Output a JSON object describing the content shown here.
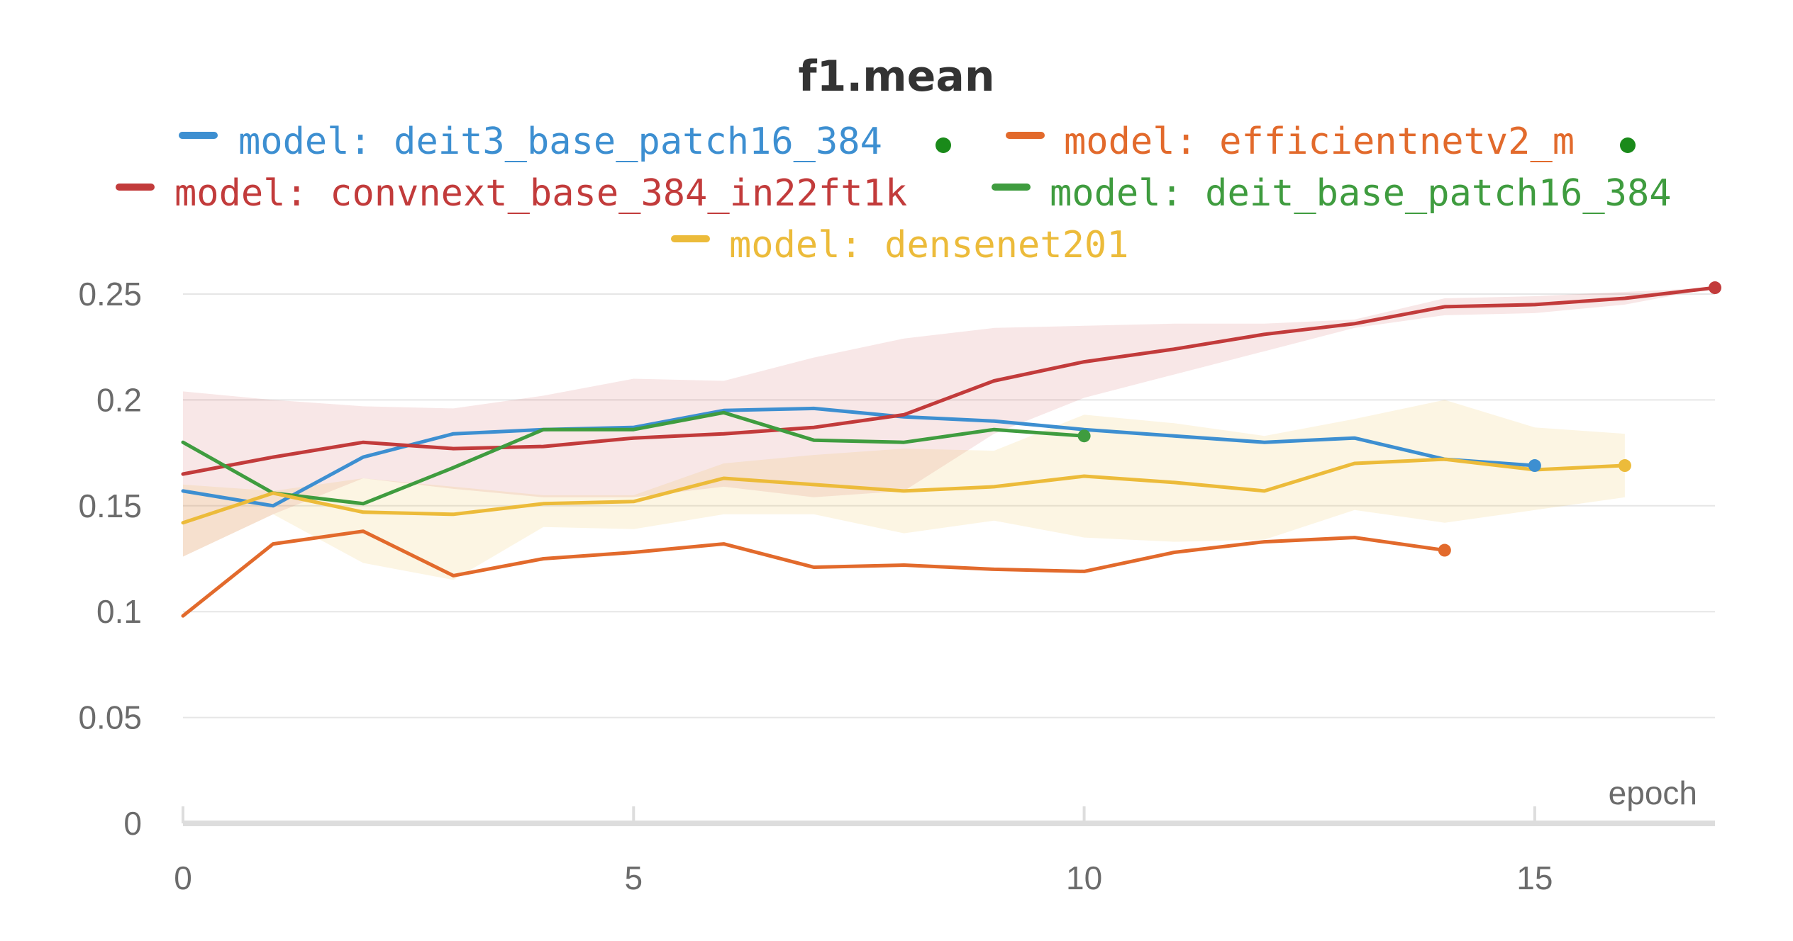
{
  "chart_data": {
    "type": "line",
    "title": "f1.mean",
    "xlabel": "epoch",
    "ylabel": "",
    "xlim": [
      0,
      17
    ],
    "ylim": [
      0,
      0.25
    ],
    "x_ticks": [
      "0",
      "5",
      "10",
      "15"
    ],
    "y_ticks": [
      "0",
      "0.05",
      "0.1",
      "0.15",
      "0.2",
      "0.25"
    ],
    "grid": true,
    "legend_position": "top",
    "series": [
      {
        "name": "model: deit3_base_patch16_384",
        "color": "#3d8fd1",
        "x": [
          0,
          1,
          2,
          3,
          4,
          5,
          6,
          7,
          8,
          9,
          10,
          11,
          12,
          13,
          14,
          15
        ],
        "values": [
          0.157,
          0.15,
          0.173,
          0.184,
          0.186,
          0.187,
          0.195,
          0.196,
          0.192,
          0.19,
          0.186,
          0.183,
          0.18,
          0.182,
          0.172,
          0.169
        ],
        "marker_dot": "#1a8a1a"
      },
      {
        "name": "model: efficientnetv2_m",
        "color": "#e26a2c",
        "x": [
          0,
          1,
          2,
          3,
          4,
          5,
          6,
          7,
          8,
          9,
          10,
          11,
          12,
          13,
          14
        ],
        "values": [
          0.098,
          0.132,
          0.138,
          0.117,
          0.125,
          0.128,
          0.132,
          0.121,
          0.122,
          0.12,
          0.119,
          0.128,
          0.133,
          0.135,
          0.129
        ],
        "marker_dot": "#1a8a1a"
      },
      {
        "name": "model: convnext_base_384_in22ft1k",
        "color": "#c23b3b",
        "x": [
          0,
          1,
          2,
          3,
          4,
          5,
          6,
          7,
          8,
          9,
          10,
          11,
          12,
          13,
          14,
          15,
          16,
          17
        ],
        "values": [
          0.165,
          0.173,
          0.18,
          0.177,
          0.178,
          0.182,
          0.184,
          0.187,
          0.193,
          0.209,
          0.218,
          0.224,
          0.231,
          0.236,
          0.244,
          0.245,
          0.248,
          0.253
        ],
        "band_upper": [
          0.204,
          0.2,
          0.197,
          0.196,
          0.202,
          0.21,
          0.209,
          0.22,
          0.229,
          0.234,
          0.235,
          0.236,
          0.236,
          0.238,
          0.248,
          0.249,
          0.251,
          0.253
        ],
        "band_lower": [
          0.126,
          0.146,
          0.163,
          0.158,
          0.154,
          0.154,
          0.159,
          0.154,
          0.157,
          0.184,
          0.201,
          0.212,
          0.223,
          0.234,
          0.24,
          0.241,
          0.245,
          0.253
        ]
      },
      {
        "name": "model: deit_base_patch16_384",
        "color": "#3f9c3f",
        "x": [
          0,
          1,
          2,
          3,
          4,
          5,
          6,
          7,
          8,
          9,
          10
        ],
        "values": [
          0.18,
          0.156,
          0.151,
          0.168,
          0.186,
          0.186,
          0.194,
          0.181,
          0.18,
          0.186,
          0.183
        ]
      },
      {
        "name": "model: densenet201",
        "color": "#ecbb3a",
        "x": [
          0,
          1,
          2,
          3,
          4,
          5,
          6,
          7,
          8,
          9,
          10,
          11,
          12,
          13,
          14,
          15,
          16
        ],
        "values": [
          0.142,
          0.156,
          0.147,
          0.146,
          0.151,
          0.152,
          0.163,
          0.16,
          0.157,
          0.159,
          0.164,
          0.161,
          0.157,
          0.17,
          0.172,
          0.167,
          0.169
        ],
        "band_upper": [
          0.16,
          0.157,
          0.163,
          0.159,
          0.155,
          0.155,
          0.17,
          0.174,
          0.177,
          0.176,
          0.193,
          0.189,
          0.183,
          0.191,
          0.2,
          0.187,
          0.184
        ],
        "band_lower": [
          0.126,
          0.146,
          0.123,
          0.115,
          0.14,
          0.139,
          0.146,
          0.146,
          0.137,
          0.143,
          0.135,
          0.133,
          0.134,
          0.148,
          0.142,
          0.148,
          0.154
        ]
      }
    ]
  }
}
